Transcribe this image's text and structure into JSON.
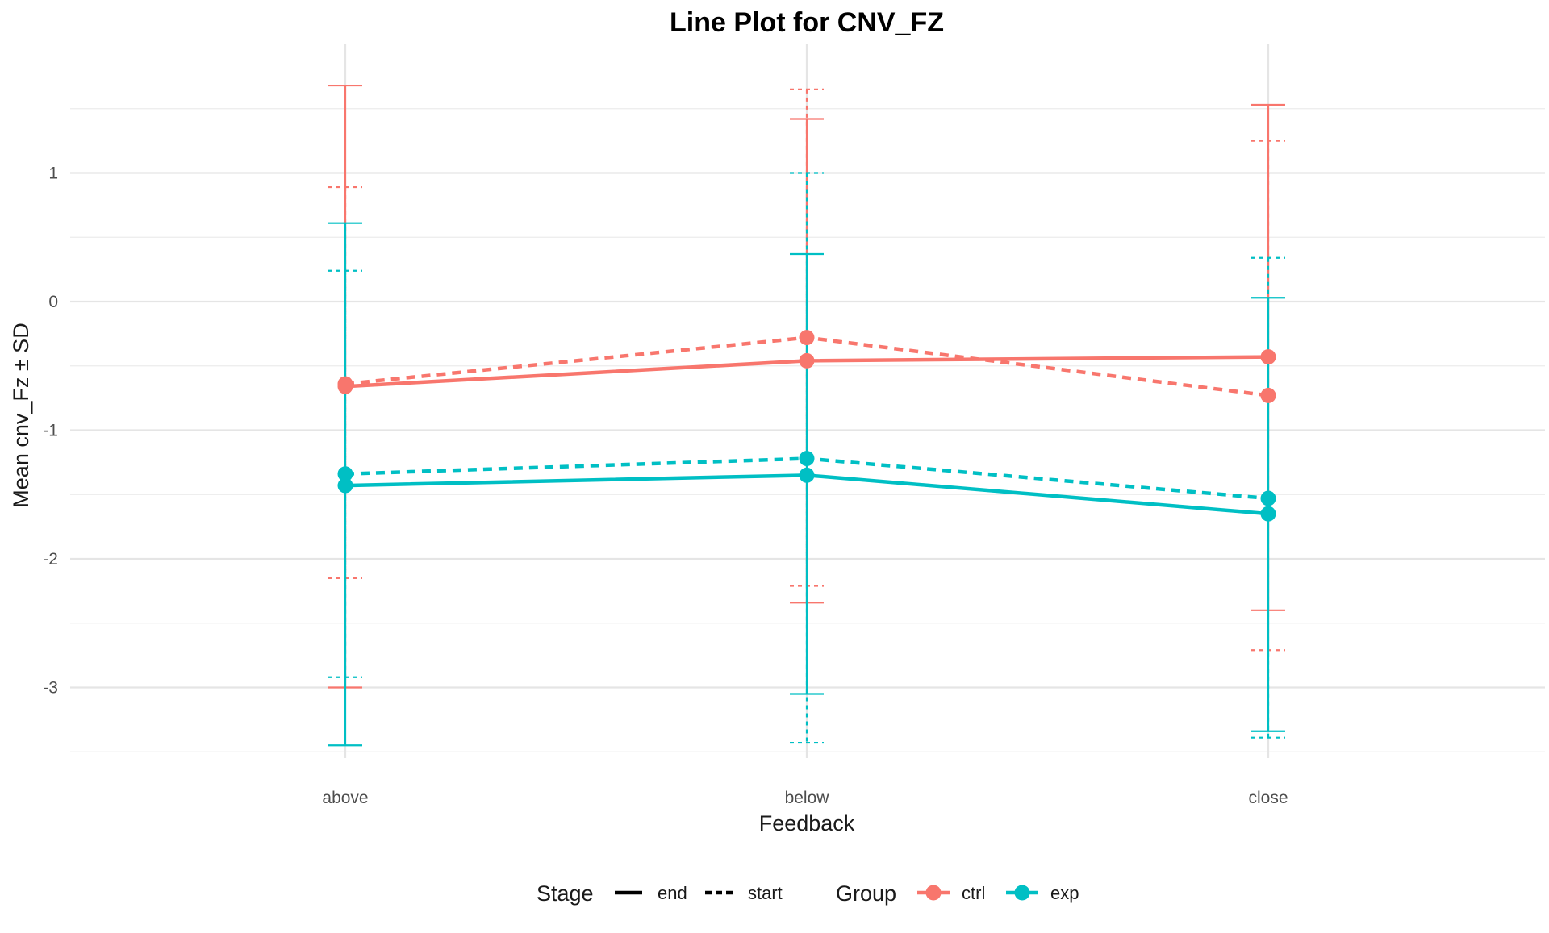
{
  "chart_data": {
    "type": "line",
    "title": "Line Plot for CNV_FZ",
    "xlabel": "Feedback",
    "ylabel": "Mean cnv_Fz ± SD",
    "categories": [
      "above",
      "below",
      "close"
    ],
    "ylim": [
      -3.5,
      1.7
    ],
    "yticks": [
      1,
      0,
      -1,
      -2,
      -3
    ],
    "ytick_labels": [
      "1",
      "0",
      "-1",
      "-2",
      "-3"
    ],
    "grid": true,
    "legend_position": "bottom",
    "legend": {
      "stage_title": "Stage",
      "stage_entries": [
        {
          "label": "end",
          "linetype": "solid"
        },
        {
          "label": "start",
          "linetype": "dashed"
        }
      ],
      "group_title": "Group",
      "group_entries": [
        {
          "label": "ctrl",
          "color": "#F8766D"
        },
        {
          "label": "exp",
          "color": "#00BFC4"
        }
      ]
    },
    "series": [
      {
        "group": "ctrl",
        "stage": "end",
        "color": "#F8766D",
        "linetype": "solid",
        "means": [
          -0.66,
          -0.46,
          -0.43
        ],
        "upper": [
          1.68,
          1.42,
          1.53
        ],
        "lower": [
          -3.0,
          -2.34,
          -2.4
        ]
      },
      {
        "group": "ctrl",
        "stage": "start",
        "color": "#F8766D",
        "linetype": "dashed",
        "means": [
          -0.64,
          -0.28,
          -0.73
        ],
        "upper": [
          0.89,
          1.65,
          1.25
        ],
        "lower": [
          -2.15,
          -2.21,
          -2.71
        ]
      },
      {
        "group": "exp",
        "stage": "end",
        "color": "#00BFC4",
        "linetype": "solid",
        "means": [
          -1.43,
          -1.35,
          -1.65
        ],
        "upper": [
          0.61,
          0.37,
          0.03
        ],
        "lower": [
          -3.45,
          -3.05,
          -3.34
        ]
      },
      {
        "group": "exp",
        "stage": "start",
        "color": "#00BFC4",
        "linetype": "dashed",
        "means": [
          -1.34,
          -1.22,
          -1.53
        ],
        "upper": [
          0.24,
          1.0,
          0.34
        ],
        "lower": [
          -2.92,
          -3.43,
          -3.39
        ]
      }
    ]
  }
}
